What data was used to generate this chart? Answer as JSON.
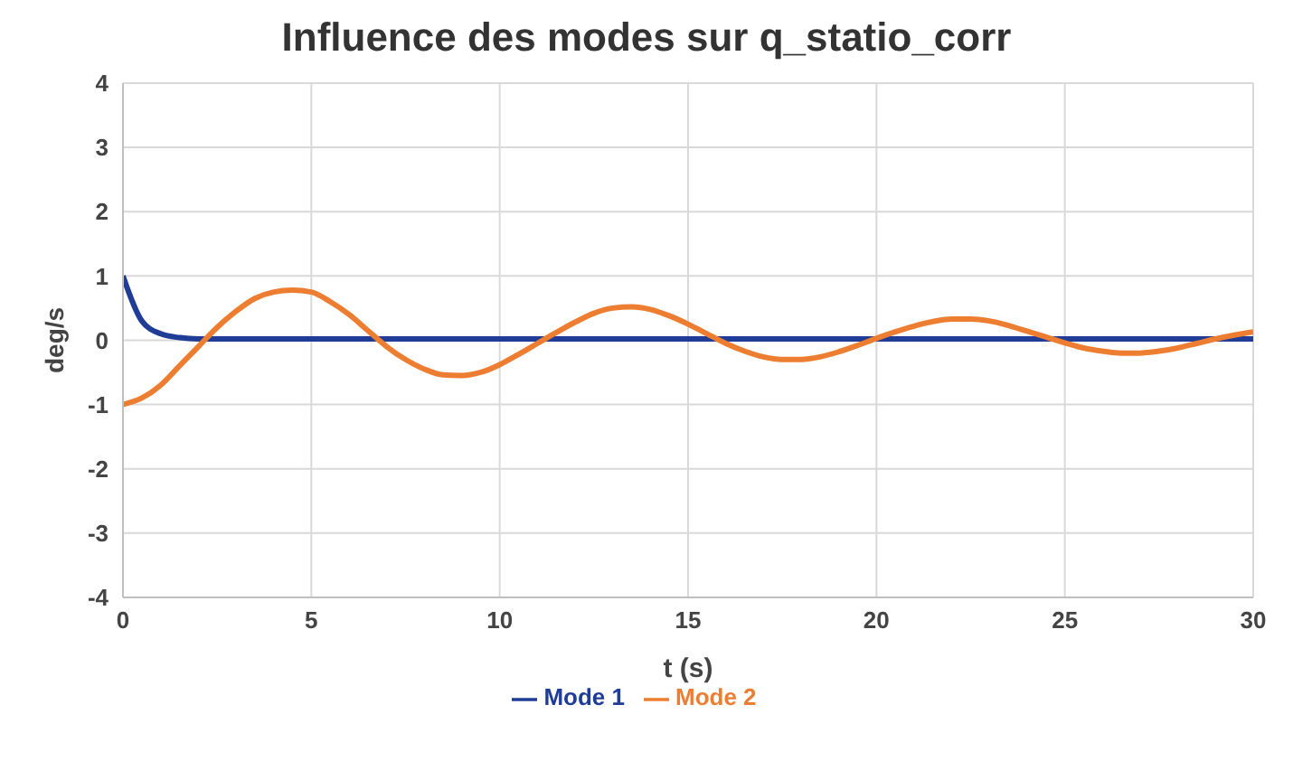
{
  "chart_data": {
    "type": "line",
    "title": "Influence des modes sur q_statio_corr",
    "xlabel": "t (s)",
    "ylabel": "deg/s",
    "x": [
      0,
      0.5,
      1,
      1.5,
      2,
      2.5,
      3,
      3.5,
      4,
      4.5,
      5,
      5.5,
      6,
      6.5,
      7,
      7.5,
      8,
      8.5,
      9,
      9.5,
      10,
      10.5,
      11,
      11.5,
      12,
      12.5,
      13,
      13.5,
      14,
      14.5,
      15,
      15.5,
      16,
      16.5,
      17,
      17.5,
      18,
      18.5,
      19,
      19.5,
      20,
      20.5,
      21,
      21.5,
      22,
      22.5,
      23,
      23.5,
      24,
      24.5,
      25,
      25.5,
      26,
      26.5,
      27,
      27.5,
      28,
      28.5,
      29,
      29.5,
      30
    ],
    "series": [
      {
        "name": "Mode 1",
        "color": "#1f3c96",
        "values": [
          1,
          0.3,
          0.1,
          0.04,
          0.02,
          0.02,
          0.02,
          0.02,
          0.02,
          0.02,
          0.02,
          0.02,
          0.02,
          0.02,
          0.02,
          0.02,
          0.02,
          0.02,
          0.02,
          0.02,
          0.02,
          0.02,
          0.02,
          0.02,
          0.02,
          0.02,
          0.02,
          0.02,
          0.02,
          0.02,
          0.02,
          0.02,
          0.02,
          0.02,
          0.02,
          0.02,
          0.02,
          0.02,
          0.02,
          0.02,
          0.02,
          0.02,
          0.02,
          0.02,
          0.02,
          0.02,
          0.02,
          0.02,
          0.02,
          0.02,
          0.02,
          0.02,
          0.02,
          0.02,
          0.02,
          0.02,
          0.02,
          0.02,
          0.02,
          0.02,
          0.02
        ]
      },
      {
        "name": "Mode 2",
        "color": "#ed7d31",
        "values": [
          -1,
          -0.9,
          -0.7,
          -0.4,
          -0.1,
          0.2,
          0.45,
          0.65,
          0.75,
          0.78,
          0.75,
          0.6,
          0.4,
          0.15,
          -0.1,
          -0.3,
          -0.45,
          -0.54,
          -0.55,
          -0.5,
          -0.38,
          -0.22,
          -0.05,
          0.12,
          0.28,
          0.42,
          0.5,
          0.52,
          0.48,
          0.38,
          0.25,
          0.1,
          -0.05,
          -0.17,
          -0.26,
          -0.3,
          -0.3,
          -0.26,
          -0.18,
          -0.08,
          0.03,
          0.13,
          0.22,
          0.29,
          0.33,
          0.33,
          0.3,
          0.23,
          0.14,
          0.05,
          -0.04,
          -0.12,
          -0.17,
          -0.2,
          -0.2,
          -0.17,
          -0.12,
          -0.05,
          0.02,
          0.08,
          0.13
        ]
      }
    ],
    "xlim": [
      0,
      30
    ],
    "xticks": [
      0,
      5,
      10,
      15,
      20,
      25,
      30
    ],
    "ylim": [
      -4,
      4
    ],
    "yticks": [
      -4,
      -3,
      -2,
      -1,
      0,
      1,
      2,
      3,
      4
    ],
    "grid": true,
    "legend": "bottom"
  }
}
